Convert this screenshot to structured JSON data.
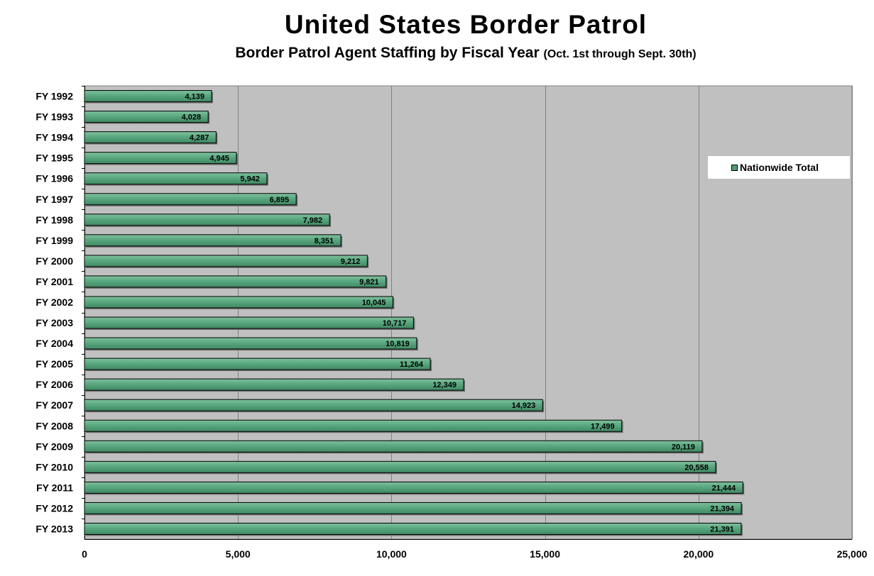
{
  "chart_data": {
    "type": "bar",
    "orientation": "horizontal",
    "title": "United States Border Patrol",
    "subtitle": "Border Patrol Agent Staffing by Fiscal Year",
    "subtitle_note": "(Oct. 1st through Sept. 30th)",
    "categories": [
      "FY 1992",
      "FY 1993",
      "FY 1994",
      "FY 1995",
      "FY 1996",
      "FY 1997",
      "FY 1998",
      "FY 1999",
      "FY 2000",
      "FY 2001",
      "FY 2002",
      "FY 2003",
      "FY 2004",
      "FY 2005",
      "FY 2006",
      "FY 2007",
      "FY 2008",
      "FY 2009",
      "FY 2010",
      "FY 2011",
      "FY 2012",
      "FY 2013"
    ],
    "series": [
      {
        "name": "Nationwide Total",
        "values": [
          4139,
          4028,
          4287,
          4945,
          5942,
          6895,
          7982,
          8351,
          9212,
          9821,
          10045,
          10717,
          10819,
          11264,
          12349,
          14923,
          17499,
          20119,
          20558,
          21444,
          21394,
          21391
        ],
        "labels": [
          "4,139",
          "4,028",
          "4,287",
          "4,945",
          "5,942",
          "6,895",
          "7,982",
          "8,351",
          "9,212",
          "9,821",
          "10,045",
          "10,717",
          "10,819",
          "11,264",
          "12,349",
          "14,923",
          "17,499",
          "20,119",
          "20,558",
          "21,444",
          "21,394",
          "21,391"
        ]
      }
    ],
    "xlim": [
      0,
      25000
    ],
    "xticks": [
      0,
      5000,
      10000,
      15000,
      20000,
      25000
    ],
    "xtick_labels": [
      "0",
      "5,000",
      "10,000",
      "15,000",
      "20,000",
      "25,000"
    ],
    "grid": true,
    "legend_position": "right",
    "colors": {
      "bar": "#4f9b73",
      "bar_highlight": "#7fc09d",
      "plot_background": "#c0c0c0",
      "gridline": "#808080"
    }
  }
}
